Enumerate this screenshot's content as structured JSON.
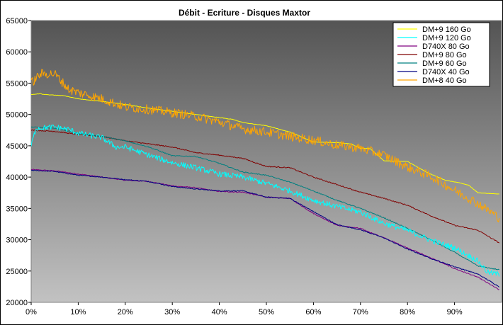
{
  "chart_data": {
    "type": "line",
    "title": "Débit - Ecriture - Disques Maxtor",
    "xlabel": "",
    "ylabel": "",
    "xlim": [
      0,
      100
    ],
    "ylim": [
      20000,
      65000
    ],
    "x_ticks": [
      0,
      10,
      20,
      30,
      40,
      50,
      60,
      70,
      80,
      90
    ],
    "x_tick_labels": [
      "0%",
      "10%",
      "20%",
      "30%",
      "40%",
      "50%",
      "60%",
      "70%",
      "80%",
      "90%"
    ],
    "y_ticks": [
      20000,
      25000,
      30000,
      35000,
      40000,
      45000,
      50000,
      55000,
      60000,
      65000
    ],
    "y_tick_labels": [
      "20000",
      "25000",
      "30000",
      "35000",
      "40000",
      "45000",
      "50000",
      "55000",
      "60000",
      "65000"
    ],
    "grid": false,
    "legend_position": "top-right",
    "background": "gradient-dark-to-light-gray",
    "series": [
      {
        "name": "DM+9 160 Go",
        "color": "#ffff00",
        "noise": 60,
        "x": [
          0,
          2,
          2.5,
          7,
          10,
          15,
          20,
          25,
          30,
          35,
          40,
          43,
          45,
          50,
          55,
          60,
          65,
          68,
          70,
          72,
          75,
          80,
          84,
          88,
          91,
          93,
          95,
          97,
          99.5
        ],
        "y": [
          53200,
          53300,
          53200,
          53000,
          52500,
          52100,
          51600,
          51000,
          50500,
          50000,
          49500,
          49200,
          48700,
          48200,
          47200,
          45600,
          45500,
          45300,
          44600,
          44600,
          42600,
          42500,
          40800,
          39500,
          39100,
          38700,
          37500,
          37400,
          37300
        ]
      },
      {
        "name": "DM+9 120 Go",
        "color": "#00ffff",
        "noise": 900,
        "x": [
          0,
          1,
          5,
          8,
          10,
          15,
          18,
          20,
          25,
          30,
          35,
          40,
          45,
          50,
          55,
          60,
          65,
          70,
          75,
          80,
          85,
          90,
          95,
          97,
          99.5
        ],
        "y": [
          45000,
          47800,
          48000,
          47600,
          47000,
          46300,
          44800,
          44800,
          43500,
          42300,
          41500,
          40500,
          40000,
          39000,
          37800,
          36300,
          35300,
          34400,
          32600,
          31500,
          29900,
          28700,
          26600,
          24800,
          24500
        ]
      },
      {
        "name": "D740X 80 Go",
        "color": "#800080",
        "noise": 150,
        "x": [
          0,
          5,
          10,
          15,
          20,
          25,
          30,
          35,
          40,
          45,
          50,
          55,
          60,
          65,
          70,
          75,
          80,
          85,
          90,
          95,
          99.5
        ],
        "y": [
          41200,
          41000,
          40500,
          40000,
          39500,
          39300,
          38600,
          38300,
          37700,
          37600,
          36800,
          36600,
          34200,
          32300,
          31800,
          30300,
          28700,
          27100,
          25400,
          24000,
          22000
        ]
      },
      {
        "name": "DM+9 80 Go",
        "color": "#800000",
        "noise": 150,
        "x": [
          0,
          5,
          10,
          15,
          20,
          25,
          30,
          35,
          40,
          45,
          50,
          55,
          60,
          65,
          70,
          75,
          80,
          85,
          90,
          95,
          99.5
        ],
        "y": [
          47500,
          47300,
          46800,
          46500,
          45800,
          45300,
          44800,
          43900,
          43500,
          43000,
          41700,
          41500,
          40000,
          38800,
          37600,
          36600,
          35500,
          33800,
          32300,
          31500,
          29500
        ]
      },
      {
        "name": "DM+9 60 Go",
        "color": "#008080",
        "noise": 150,
        "x": [
          0,
          5,
          10,
          15,
          20,
          25,
          30,
          35,
          40,
          45,
          50,
          55,
          60,
          65,
          70,
          75,
          80,
          85,
          90,
          95,
          99.5
        ],
        "y": [
          48000,
          47800,
          47000,
          46500,
          45800,
          44800,
          43400,
          43300,
          42200,
          40800,
          40300,
          39200,
          37800,
          36300,
          35000,
          33500,
          31800,
          30000,
          28000,
          25800,
          25200
        ]
      },
      {
        "name": "D740X 40 Go",
        "color": "#000080",
        "noise": 150,
        "x": [
          0,
          5,
          10,
          15,
          20,
          25,
          30,
          35,
          40,
          45,
          50,
          55,
          60,
          65,
          70,
          75,
          80,
          85,
          90,
          95,
          99.5
        ],
        "y": [
          41100,
          40900,
          40300,
          40000,
          39600,
          39300,
          38500,
          38100,
          37800,
          37800,
          36800,
          36600,
          34500,
          32400,
          31600,
          30300,
          28500,
          27000,
          25700,
          24500,
          22500
        ]
      },
      {
        "name": "DM+8 40 Go",
        "color": "#ffa500",
        "noise": 1500,
        "x": [
          0,
          2,
          5,
          8,
          10,
          15,
          20,
          25,
          30,
          35,
          40,
          45,
          50,
          55,
          60,
          65,
          70,
          75,
          80,
          85,
          90,
          95,
          99.5
        ],
        "y": [
          55000,
          56500,
          56500,
          54000,
          53500,
          52500,
          51200,
          50800,
          50300,
          49700,
          48800,
          47700,
          47200,
          46500,
          45900,
          45100,
          44600,
          43500,
          41600,
          40100,
          37900,
          35800,
          33500
        ]
      }
    ]
  }
}
